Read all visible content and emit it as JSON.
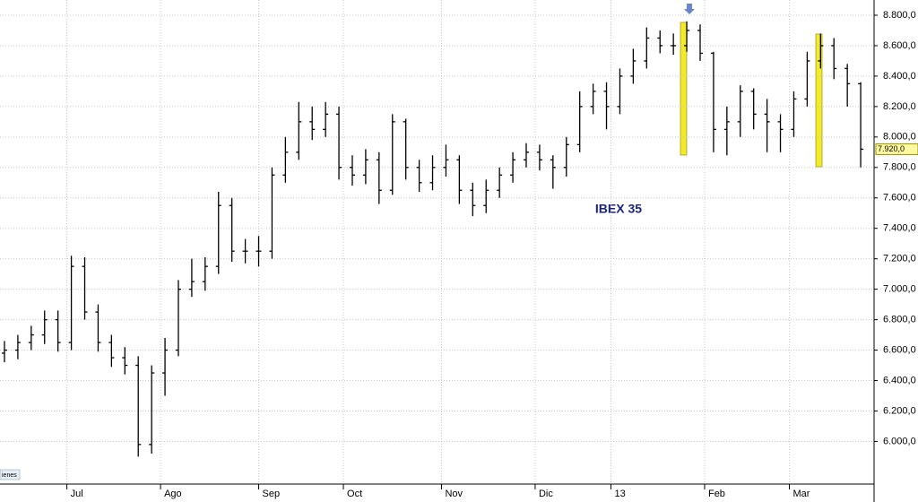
{
  "chart_data": {
    "type": "ohlc",
    "title": "IBEX 35",
    "last_label": "7.920,0",
    "corner_label": "ienes",
    "color": "#000000",
    "grid": true,
    "x": [
      0,
      3,
      6,
      9,
      12,
      15,
      18,
      21,
      24,
      27,
      30,
      33,
      36,
      39,
      42,
      45,
      48,
      51,
      54,
      57,
      60,
      63,
      66,
      69,
      72,
      75,
      78,
      81,
      84,
      87,
      90,
      93,
      96,
      99,
      102,
      105,
      108,
      111,
      114,
      117,
      120,
      123,
      126,
      129,
      132,
      135,
      138,
      141,
      144,
      147,
      150,
      153,
      156,
      159,
      162,
      165,
      168,
      171,
      174,
      177,
      180,
      183,
      186,
      189,
      192
    ],
    "open": [
      6580,
      6600,
      6650,
      6700,
      6800,
      6650,
      7150,
      6850,
      6650,
      6550,
      6500,
      5980,
      6450,
      6600,
      7000,
      7050,
      7150,
      7550,
      7250,
      7250,
      7250,
      7750,
      7900,
      8100,
      8050,
      8150,
      7800,
      7750,
      7850,
      7650,
      8100,
      7800,
      7700,
      7800,
      7850,
      7650,
      7550,
      7650,
      7750,
      7850,
      7900,
      7850,
      7800,
      7950,
      8200,
      8300,
      8200,
      8400,
      8500,
      8650,
      8600,
      8600,
      8700,
      8550,
      8050,
      8100,
      8300,
      8150,
      8100,
      8050,
      8250,
      8500,
      8600,
      8450,
      8350
    ],
    "high": [
      6660,
      6700,
      6760,
      6860,
      6860,
      7220,
      7210,
      6900,
      6700,
      6620,
      6560,
      6500,
      6680,
      7060,
      7200,
      7210,
      7640,
      7600,
      7330,
      7350,
      7800,
      8000,
      8230,
      8200,
      8230,
      8200,
      7880,
      7920,
      7900,
      8150,
      8120,
      7850,
      7880,
      7950,
      7880,
      7700,
      7720,
      7800,
      7900,
      7960,
      7950,
      7880,
      8000,
      8300,
      8350,
      8360,
      8450,
      8580,
      8720,
      8700,
      8680,
      8760,
      8740,
      8560,
      8200,
      8340,
      8320,
      8250,
      8150,
      8300,
      8560,
      8680,
      8650,
      8480,
      8360
    ],
    "low": [
      6520,
      6540,
      6600,
      6640,
      6590,
      6600,
      6800,
      6590,
      6490,
      6440,
      5900,
      5920,
      6300,
      6560,
      6950,
      6990,
      7100,
      7180,
      7170,
      7150,
      7200,
      7700,
      7850,
      7980,
      8000,
      7720,
      7680,
      7690,
      7560,
      7620,
      7720,
      7640,
      7650,
      7740,
      7560,
      7480,
      7500,
      7600,
      7700,
      7800,
      7780,
      7660,
      7740,
      7900,
      8150,
      8050,
      8150,
      8350,
      8450,
      8550,
      8540,
      8560,
      8500,
      7900,
      7880,
      8000,
      8050,
      7900,
      7900,
      8000,
      8200,
      8450,
      8380,
      8200,
      7800
    ],
    "close": [
      6600,
      6650,
      6700,
      6800,
      6650,
      7150,
      6850,
      6650,
      6550,
      6500,
      5980,
      6450,
      6600,
      7000,
      7050,
      7150,
      7550,
      7250,
      7250,
      7250,
      7750,
      7900,
      8100,
      8050,
      8150,
      7800,
      7750,
      7850,
      7650,
      8100,
      7800,
      7700,
      7800,
      7850,
      7650,
      7550,
      7650,
      7750,
      7850,
      7900,
      7850,
      7800,
      7950,
      8200,
      8300,
      8200,
      8400,
      8500,
      8650,
      8600,
      8600,
      8700,
      8550,
      8050,
      8100,
      8300,
      8150,
      8100,
      8050,
      8250,
      8500,
      8600,
      8450,
      8350,
      7920
    ],
    "xlim": [
      -1,
      195
    ],
    "xticks": [
      {
        "value": 14,
        "label": "Jul"
      },
      {
        "value": 35,
        "label": "Ago"
      },
      {
        "value": 57,
        "label": "Sep"
      },
      {
        "value": 76,
        "label": "Oct"
      },
      {
        "value": 98,
        "label": "Nov"
      },
      {
        "value": 119,
        "label": "Dic"
      },
      {
        "value": 136,
        "label": "13"
      },
      {
        "value": 157,
        "label": "Feb"
      },
      {
        "value": 176,
        "label": "Mar"
      }
    ],
    "ylim": [
      5720,
      8900
    ],
    "yticks": [
      {
        "value": 6000,
        "label": "6.000,0"
      },
      {
        "value": 6200,
        "label": "6.200,0"
      },
      {
        "value": 6400,
        "label": "6.400,0"
      },
      {
        "value": 6600,
        "label": "6.600,0"
      },
      {
        "value": 6800,
        "label": "6.800,0"
      },
      {
        "value": 7000,
        "label": "7.000,0"
      },
      {
        "value": 7200,
        "label": "7.200,0"
      },
      {
        "value": 7400,
        "label": "7.400,0"
      },
      {
        "value": 7600,
        "label": "7.600,0"
      },
      {
        "value": 7800,
        "label": "7.800,0"
      },
      {
        "value": 8000,
        "label": "8.000,0"
      },
      {
        "value": 8200,
        "label": "8.200,0"
      },
      {
        "value": 8400,
        "label": "8.400,0"
      },
      {
        "value": 8600,
        "label": "8.600,0"
      },
      {
        "value": 8800,
        "label": "8.800,0"
      }
    ]
  }
}
